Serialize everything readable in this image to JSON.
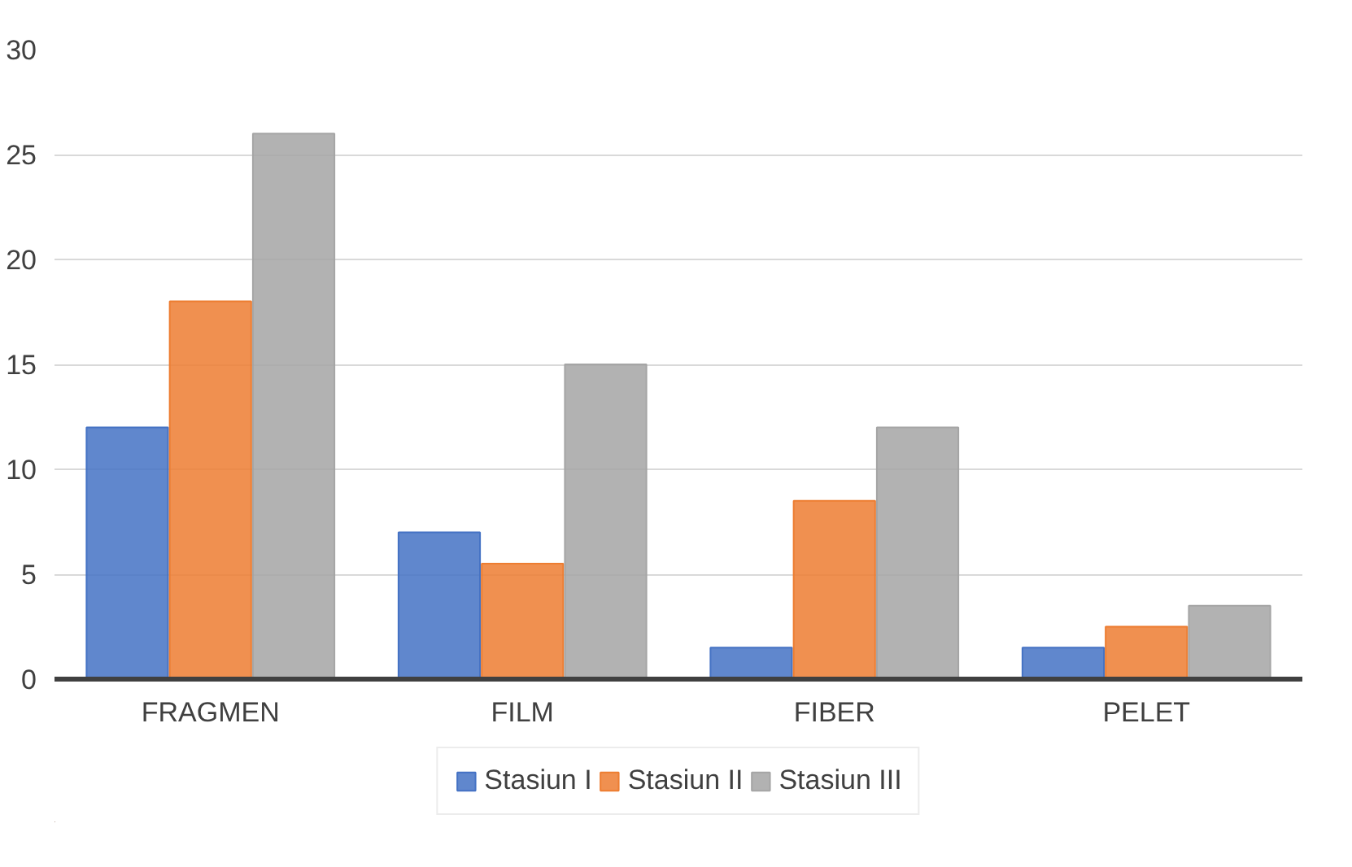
{
  "chart_data": {
    "type": "bar",
    "categories": [
      "FRAGMEN",
      "FILM",
      "FIBER",
      "PELET"
    ],
    "series": [
      {
        "name": "Stasiun I",
        "color": "#4472c4",
        "values": [
          12,
          7,
          1.5,
          1.5
        ]
      },
      {
        "name": "Stasiun II",
        "color": "#ed7d31",
        "values": [
          18,
          5.5,
          8.5,
          2.5
        ]
      },
      {
        "name": "Stasiun III",
        "color": "#a5a5a5",
        "values": [
          26,
          15,
          12,
          3.5
        ]
      }
    ],
    "ylim": [
      0,
      30
    ],
    "yticks": [
      0,
      5,
      10,
      15,
      20,
      25,
      30
    ],
    "grid": "y",
    "legend": "bottom"
  }
}
